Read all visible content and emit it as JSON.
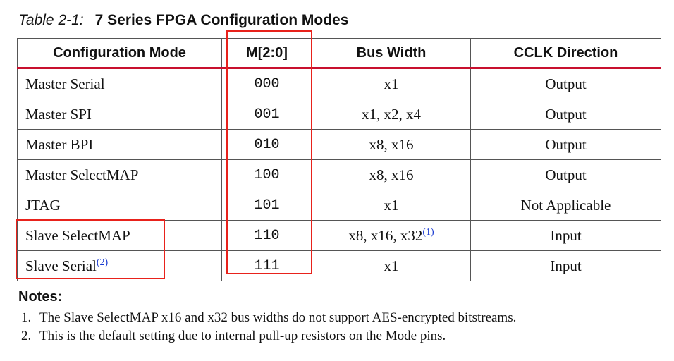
{
  "caption": {
    "number": "Table 2-1:",
    "title": "7 Series FPGA Configuration Modes"
  },
  "table": {
    "headers": [
      "Configuration Mode",
      "M[2:0]",
      "Bus Width",
      "CCLK Direction"
    ],
    "rows": [
      {
        "mode": "Master Serial",
        "mode_note": "",
        "m": "000",
        "bus": "x1",
        "bus_note": "",
        "cclk": "Output"
      },
      {
        "mode": "Master SPI",
        "mode_note": "",
        "m": "001",
        "bus": "x1, x2, x4",
        "bus_note": "",
        "cclk": "Output"
      },
      {
        "mode": "Master BPI",
        "mode_note": "",
        "m": "010",
        "bus": "x8, x16",
        "bus_note": "",
        "cclk": "Output"
      },
      {
        "mode": "Master SelectMAP",
        "mode_note": "",
        "m": "100",
        "bus": "x8, x16",
        "bus_note": "",
        "cclk": "Output"
      },
      {
        "mode": "JTAG",
        "mode_note": "",
        "m": "101",
        "bus": "x1",
        "bus_note": "",
        "cclk": "Not Applicable"
      },
      {
        "mode": "Slave SelectMAP",
        "mode_note": "",
        "m": "110",
        "bus": "x8, x16, x32",
        "bus_note": "(1)",
        "cclk": "Input"
      },
      {
        "mode": "Slave Serial",
        "mode_note": "(2)",
        "m": "111",
        "bus": "x1",
        "bus_note": "",
        "cclk": "Input"
      }
    ]
  },
  "notes": {
    "title": "Notes:",
    "items": [
      {
        "n": "1.",
        "text": "The Slave SelectMAP x16 and x32 bus widths do not support AES-encrypted bitstreams."
      },
      {
        "n": "2.",
        "text": "This is the default setting due to internal pull-up resistors on the Mode pins."
      }
    ]
  },
  "annotation_color": "#e8221b"
}
